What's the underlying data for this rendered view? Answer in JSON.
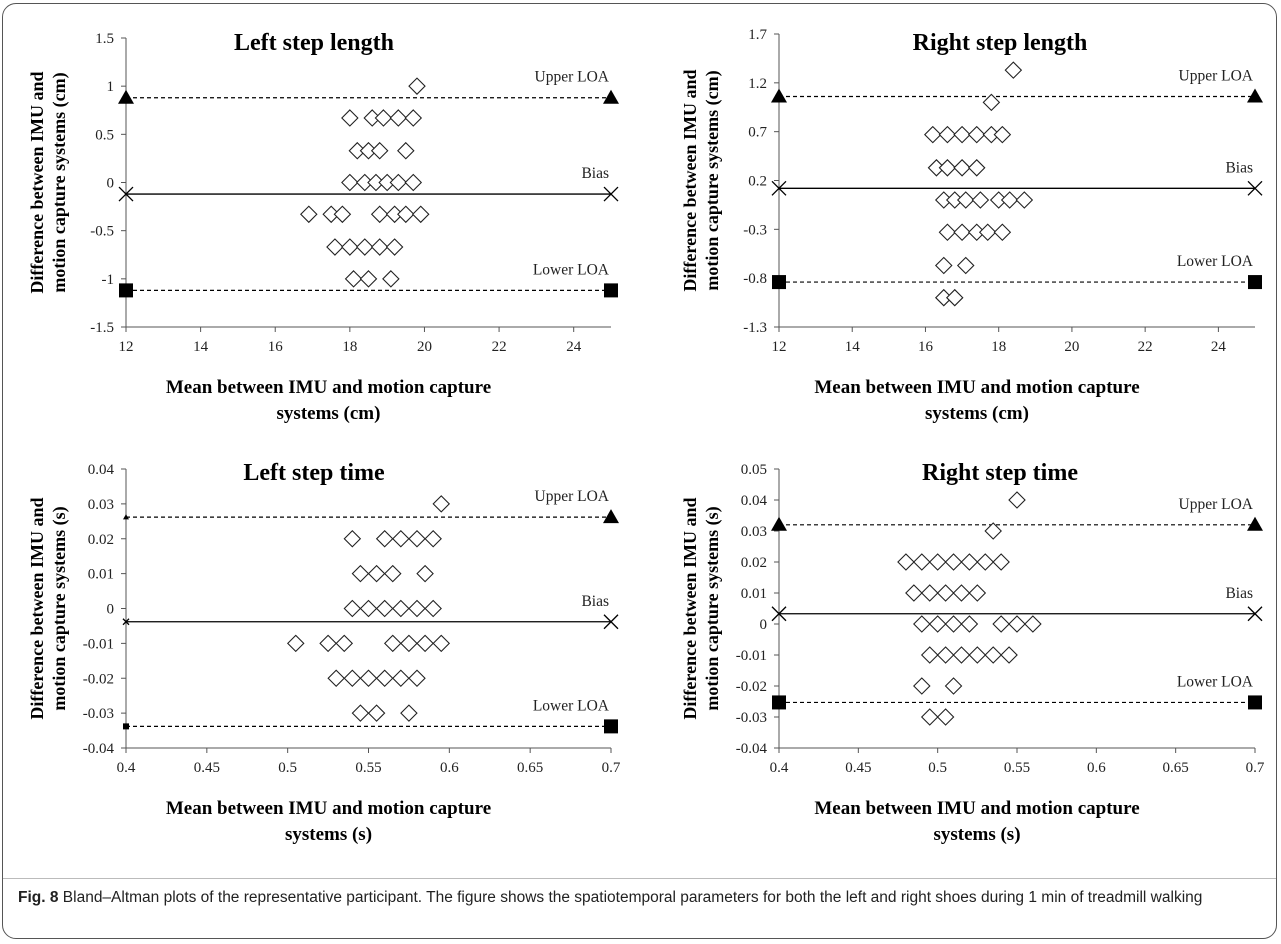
{
  "figure": {
    "caption_label": "Fig. 8",
    "caption_text": " Bland–Altman plots of the representative participant. The figure shows the spatiotemporal parameters for both the left and right shoes during 1 min of treadmill walking"
  },
  "chart_data": [
    {
      "type": "scatter",
      "title": "Left step length",
      "xlabel": [
        "Mean between IMU and motion capture",
        "systems (cm)"
      ],
      "ylabel": [
        "Difference between IMU and",
        "motion capture systems (cm)"
      ],
      "xlim": [
        12,
        25
      ],
      "ylim": [
        -1.5,
        1.5
      ],
      "xticks": [
        "12",
        "14",
        "16",
        "18",
        "20",
        "22",
        "24"
      ],
      "yticks": [
        "-1.5",
        "-1",
        "-0.5",
        "0",
        "0.5",
        "1",
        "1.5"
      ],
      "xtick_values": [
        12,
        14,
        16,
        18,
        20,
        22,
        24
      ],
      "ytick_values": [
        -1.5,
        -1,
        -0.5,
        0,
        0.5,
        1,
        1.5
      ],
      "upper_loa": 0.88,
      "bias": -0.12,
      "lower_loa": -1.12,
      "upper_label": "Upper LOA",
      "bias_label": "Bias",
      "lower_label": "Lower LOA",
      "left_marker_small": false,
      "points": [
        {
          "x": 19.8,
          "y": 1.0
        },
        {
          "x": 18.0,
          "y": 0.67
        },
        {
          "x": 18.6,
          "y": 0.67
        },
        {
          "x": 18.9,
          "y": 0.67
        },
        {
          "x": 19.3,
          "y": 0.67
        },
        {
          "x": 19.7,
          "y": 0.67
        },
        {
          "x": 18.2,
          "y": 0.33
        },
        {
          "x": 18.5,
          "y": 0.33
        },
        {
          "x": 18.8,
          "y": 0.33
        },
        {
          "x": 19.5,
          "y": 0.33
        },
        {
          "x": 18.0,
          "y": 0.0
        },
        {
          "x": 18.4,
          "y": 0.0
        },
        {
          "x": 18.7,
          "y": 0.0
        },
        {
          "x": 19.0,
          "y": 0.0
        },
        {
          "x": 19.3,
          "y": 0.0
        },
        {
          "x": 19.7,
          "y": 0.0
        },
        {
          "x": 16.9,
          "y": -0.33
        },
        {
          "x": 17.5,
          "y": -0.33
        },
        {
          "x": 17.8,
          "y": -0.33
        },
        {
          "x": 18.8,
          "y": -0.33
        },
        {
          "x": 19.2,
          "y": -0.33
        },
        {
          "x": 19.5,
          "y": -0.33
        },
        {
          "x": 19.9,
          "y": -0.33
        },
        {
          "x": 17.6,
          "y": -0.67
        },
        {
          "x": 18.0,
          "y": -0.67
        },
        {
          "x": 18.4,
          "y": -0.67
        },
        {
          "x": 18.8,
          "y": -0.67
        },
        {
          "x": 19.2,
          "y": -0.67
        },
        {
          "x": 18.1,
          "y": -1.0
        },
        {
          "x": 18.5,
          "y": -1.0
        },
        {
          "x": 19.1,
          "y": -1.0
        }
      ]
    },
    {
      "type": "scatter",
      "title": "Right step length",
      "xlabel": [
        "Mean between IMU and motion capture",
        "systems (cm)"
      ],
      "ylabel": [
        "Difference between IMU and",
        "motion capture systems (cm)"
      ],
      "xlim": [
        12,
        25
      ],
      "ylim": [
        -1.3,
        1.7
      ],
      "xticks": [
        "12",
        "14",
        "16",
        "18",
        "20",
        "22",
        "24"
      ],
      "yticks": [
        "-1.3",
        "-0.8",
        "-0.3",
        "0.2",
        "0.7",
        "1.2",
        "1.7"
      ],
      "xtick_values": [
        12,
        14,
        16,
        18,
        20,
        22,
        24
      ],
      "ytick_values": [
        -1.3,
        -0.8,
        -0.3,
        0.2,
        0.7,
        1.2,
        1.7
      ],
      "upper_loa": 1.06,
      "bias": 0.12,
      "lower_loa": -0.84,
      "upper_label": "Upper LOA",
      "bias_label": "Bias",
      "lower_label": "Lower LOA",
      "left_marker_small": false,
      "points": [
        {
          "x": 18.4,
          "y": 1.33
        },
        {
          "x": 17.8,
          "y": 1.0
        },
        {
          "x": 16.2,
          "y": 0.67
        },
        {
          "x": 16.6,
          "y": 0.67
        },
        {
          "x": 17.0,
          "y": 0.67
        },
        {
          "x": 17.4,
          "y": 0.67
        },
        {
          "x": 17.8,
          "y": 0.67
        },
        {
          "x": 18.1,
          "y": 0.67
        },
        {
          "x": 16.3,
          "y": 0.33
        },
        {
          "x": 16.6,
          "y": 0.33
        },
        {
          "x": 17.0,
          "y": 0.33
        },
        {
          "x": 17.4,
          "y": 0.33
        },
        {
          "x": 16.5,
          "y": 0.0
        },
        {
          "x": 16.8,
          "y": 0.0
        },
        {
          "x": 17.1,
          "y": 0.0
        },
        {
          "x": 17.5,
          "y": 0.0
        },
        {
          "x": 18.0,
          "y": 0.0
        },
        {
          "x": 18.3,
          "y": 0.0
        },
        {
          "x": 18.7,
          "y": 0.0
        },
        {
          "x": 16.6,
          "y": -0.33
        },
        {
          "x": 17.0,
          "y": -0.33
        },
        {
          "x": 17.4,
          "y": -0.33
        },
        {
          "x": 17.7,
          "y": -0.33
        },
        {
          "x": 18.1,
          "y": -0.33
        },
        {
          "x": 16.5,
          "y": -0.67
        },
        {
          "x": 17.1,
          "y": -0.67
        },
        {
          "x": 16.5,
          "y": -1.0
        },
        {
          "x": 16.8,
          "y": -1.0
        }
      ]
    },
    {
      "type": "scatter",
      "title": "Left step time",
      "xlabel": [
        "Mean between IMU and motion capture",
        "systems (s)"
      ],
      "ylabel": [
        "Difference between IMU and",
        "motion capture systems (s)"
      ],
      "xlim": [
        0.4,
        0.7
      ],
      "ylim": [
        -0.04,
        0.04
      ],
      "xticks": [
        "0.4",
        "0.45",
        "0.5",
        "0.55",
        "0.6",
        "0.65",
        "0.7"
      ],
      "yticks": [
        "-0.04",
        "-0.03",
        "-0.02",
        "-0.01",
        "0",
        "0.01",
        "0.02",
        "0.03",
        "0.04"
      ],
      "xtick_values": [
        0.4,
        0.45,
        0.5,
        0.55,
        0.6,
        0.65,
        0.7
      ],
      "ytick_values": [
        -0.04,
        -0.03,
        -0.02,
        -0.01,
        0,
        0.01,
        0.02,
        0.03,
        0.04
      ],
      "upper_loa": 0.0262,
      "bias": -0.0038,
      "lower_loa": -0.0338,
      "upper_label": "Upper LOA",
      "bias_label": "Bias",
      "lower_label": "Lower LOA",
      "left_marker_small": true,
      "points": [
        {
          "x": 0.595,
          "y": 0.03
        },
        {
          "x": 0.54,
          "y": 0.02
        },
        {
          "x": 0.56,
          "y": 0.02
        },
        {
          "x": 0.57,
          "y": 0.02
        },
        {
          "x": 0.58,
          "y": 0.02
        },
        {
          "x": 0.59,
          "y": 0.02
        },
        {
          "x": 0.545,
          "y": 0.01
        },
        {
          "x": 0.555,
          "y": 0.01
        },
        {
          "x": 0.565,
          "y": 0.01
        },
        {
          "x": 0.585,
          "y": 0.01
        },
        {
          "x": 0.54,
          "y": 0.0
        },
        {
          "x": 0.55,
          "y": 0.0
        },
        {
          "x": 0.56,
          "y": 0.0
        },
        {
          "x": 0.57,
          "y": 0.0
        },
        {
          "x": 0.58,
          "y": 0.0
        },
        {
          "x": 0.59,
          "y": 0.0
        },
        {
          "x": 0.505,
          "y": -0.01
        },
        {
          "x": 0.525,
          "y": -0.01
        },
        {
          "x": 0.535,
          "y": -0.01
        },
        {
          "x": 0.565,
          "y": -0.01
        },
        {
          "x": 0.575,
          "y": -0.01
        },
        {
          "x": 0.585,
          "y": -0.01
        },
        {
          "x": 0.595,
          "y": -0.01
        },
        {
          "x": 0.53,
          "y": -0.02
        },
        {
          "x": 0.54,
          "y": -0.02
        },
        {
          "x": 0.55,
          "y": -0.02
        },
        {
          "x": 0.56,
          "y": -0.02
        },
        {
          "x": 0.57,
          "y": -0.02
        },
        {
          "x": 0.58,
          "y": -0.02
        },
        {
          "x": 0.545,
          "y": -0.03
        },
        {
          "x": 0.555,
          "y": -0.03
        },
        {
          "x": 0.575,
          "y": -0.03
        }
      ]
    },
    {
      "type": "scatter",
      "title": "Right step time",
      "xlabel": [
        "Mean between IMU and motion capture",
        "systems (s)"
      ],
      "ylabel": [
        "Difference between IMU and",
        "motion capture systems (s)"
      ],
      "xlim": [
        0.4,
        0.7
      ],
      "ylim": [
        -0.04,
        0.05
      ],
      "xticks": [
        "0.4",
        "0.45",
        "0.5",
        "0.55",
        "0.6",
        "0.65",
        "0.7"
      ],
      "yticks": [
        "-0.04",
        "-0.03",
        "-0.02",
        "-0.01",
        "0",
        "0.01",
        "0.02",
        "0.03",
        "0.04",
        "0.05"
      ],
      "xtick_values": [
        0.4,
        0.45,
        0.5,
        0.55,
        0.6,
        0.65,
        0.7
      ],
      "ytick_values": [
        -0.04,
        -0.03,
        -0.02,
        -0.01,
        0,
        0.01,
        0.02,
        0.03,
        0.04,
        0.05
      ],
      "upper_loa": 0.032,
      "bias": 0.0033,
      "lower_loa": -0.0253,
      "upper_label": "Upper LOA",
      "bias_label": "Bias",
      "lower_label": "Lower LOA",
      "left_marker_small": false,
      "points": [
        {
          "x": 0.55,
          "y": 0.04
        },
        {
          "x": 0.535,
          "y": 0.03
        },
        {
          "x": 0.48,
          "y": 0.02
        },
        {
          "x": 0.49,
          "y": 0.02
        },
        {
          "x": 0.5,
          "y": 0.02
        },
        {
          "x": 0.51,
          "y": 0.02
        },
        {
          "x": 0.52,
          "y": 0.02
        },
        {
          "x": 0.53,
          "y": 0.02
        },
        {
          "x": 0.54,
          "y": 0.02
        },
        {
          "x": 0.485,
          "y": 0.01
        },
        {
          "x": 0.495,
          "y": 0.01
        },
        {
          "x": 0.505,
          "y": 0.01
        },
        {
          "x": 0.515,
          "y": 0.01
        },
        {
          "x": 0.525,
          "y": 0.01
        },
        {
          "x": 0.49,
          "y": 0.0
        },
        {
          "x": 0.5,
          "y": 0.0
        },
        {
          "x": 0.51,
          "y": 0.0
        },
        {
          "x": 0.52,
          "y": 0.0
        },
        {
          "x": 0.54,
          "y": 0.0
        },
        {
          "x": 0.55,
          "y": 0.0
        },
        {
          "x": 0.56,
          "y": 0.0
        },
        {
          "x": 0.495,
          "y": -0.01
        },
        {
          "x": 0.505,
          "y": -0.01
        },
        {
          "x": 0.515,
          "y": -0.01
        },
        {
          "x": 0.525,
          "y": -0.01
        },
        {
          "x": 0.535,
          "y": -0.01
        },
        {
          "x": 0.545,
          "y": -0.01
        },
        {
          "x": 0.49,
          "y": -0.02
        },
        {
          "x": 0.51,
          "y": -0.02
        },
        {
          "x": 0.495,
          "y": -0.03
        },
        {
          "x": 0.505,
          "y": -0.03
        }
      ]
    }
  ]
}
